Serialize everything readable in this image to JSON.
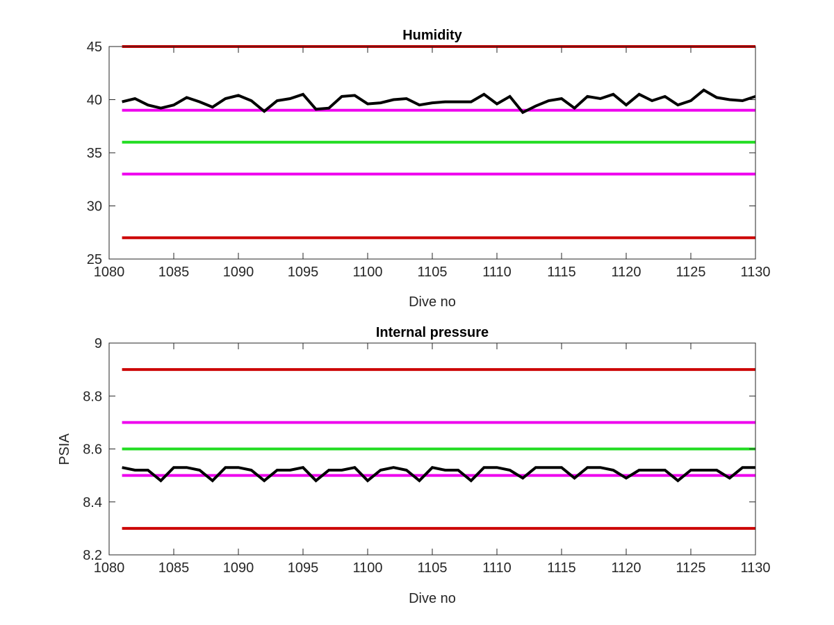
{
  "chart_data": [
    {
      "type": "line",
      "title": "Humidity",
      "xlabel": "Dive no",
      "ylabel": "",
      "xlim": [
        1080,
        1130
      ],
      "ylim": [
        25,
        45
      ],
      "xticks": [
        1080,
        1085,
        1090,
        1095,
        1100,
        1105,
        1110,
        1115,
        1120,
        1125,
        1130
      ],
      "yticks": [
        25,
        30,
        35,
        40,
        45
      ],
      "grid": false,
      "x": [
        1081,
        1082,
        1083,
        1084,
        1085,
        1086,
        1087,
        1088,
        1089,
        1090,
        1091,
        1092,
        1093,
        1094,
        1095,
        1096,
        1097,
        1098,
        1099,
        1100,
        1101,
        1102,
        1103,
        1104,
        1105,
        1106,
        1107,
        1108,
        1109,
        1110,
        1111,
        1112,
        1113,
        1114,
        1115,
        1116,
        1117,
        1118,
        1119,
        1120,
        1121,
        1122,
        1123,
        1124,
        1125,
        1126,
        1127,
        1128,
        1129,
        1130
      ],
      "series": [
        {
          "color": "#000000",
          "values": [
            39.8,
            40.1,
            39.5,
            39.2,
            39.5,
            40.2,
            39.8,
            39.3,
            40.1,
            40.4,
            39.9,
            38.9,
            39.9,
            40.1,
            40.5,
            39.1,
            39.2,
            40.3,
            40.4,
            39.6,
            39.7,
            40.0,
            40.1,
            39.5,
            39.7,
            39.8,
            39.8,
            39.8,
            40.5,
            39.6,
            40.3,
            38.8,
            39.4,
            39.9,
            40.1,
            39.2,
            40.3,
            40.1,
            40.5,
            39.5,
            40.5,
            39.9,
            40.3,
            39.5,
            39.9,
            40.9,
            40.2,
            40.0,
            39.9,
            40.3
          ]
        }
      ],
      "reference_lines": [
        {
          "y": 45,
          "color": "#cc0000"
        },
        {
          "y": 39,
          "color": "#ee00ee"
        },
        {
          "y": 36,
          "color": "#22dd22"
        },
        {
          "y": 33,
          "color": "#ee00ee"
        },
        {
          "y": 27,
          "color": "#cc0000"
        }
      ]
    },
    {
      "type": "line",
      "title": "Internal pressure",
      "xlabel": "Dive no",
      "ylabel": "PSIA",
      "xlim": [
        1080,
        1130
      ],
      "ylim": [
        8.2,
        9.0
      ],
      "xticks": [
        1080,
        1085,
        1090,
        1095,
        1100,
        1105,
        1110,
        1115,
        1120,
        1125,
        1130
      ],
      "yticks": [
        8.2,
        8.4,
        8.6,
        8.8,
        9.0
      ],
      "ytick_labels": [
        "8.2",
        "8.4",
        "8.6",
        "8.8",
        "9"
      ],
      "grid": false,
      "x": [
        1081,
        1082,
        1083,
        1084,
        1085,
        1086,
        1087,
        1088,
        1089,
        1090,
        1091,
        1092,
        1093,
        1094,
        1095,
        1096,
        1097,
        1098,
        1099,
        1100,
        1101,
        1102,
        1103,
        1104,
        1105,
        1106,
        1107,
        1108,
        1109,
        1110,
        1111,
        1112,
        1113,
        1114,
        1115,
        1116,
        1117,
        1118,
        1119,
        1120,
        1121,
        1122,
        1123,
        1124,
        1125,
        1126,
        1127,
        1128,
        1129,
        1130
      ],
      "series": [
        {
          "color": "#000000",
          "values": [
            8.53,
            8.52,
            8.52,
            8.48,
            8.53,
            8.53,
            8.52,
            8.48,
            8.53,
            8.53,
            8.52,
            8.48,
            8.52,
            8.52,
            8.53,
            8.48,
            8.52,
            8.52,
            8.53,
            8.48,
            8.52,
            8.53,
            8.52,
            8.48,
            8.53,
            8.52,
            8.52,
            8.48,
            8.53,
            8.53,
            8.52,
            8.49,
            8.53,
            8.53,
            8.53,
            8.49,
            8.53,
            8.53,
            8.52,
            8.49,
            8.52,
            8.52,
            8.52,
            8.48,
            8.52,
            8.52,
            8.52,
            8.49,
            8.53,
            8.53
          ]
        }
      ],
      "reference_lines": [
        {
          "y": 8.9,
          "color": "#cc0000"
        },
        {
          "y": 8.7,
          "color": "#ee00ee"
        },
        {
          "y": 8.6,
          "color": "#22dd22"
        },
        {
          "y": 8.5,
          "color": "#ee00ee"
        },
        {
          "y": 8.3,
          "color": "#cc0000"
        }
      ]
    }
  ]
}
